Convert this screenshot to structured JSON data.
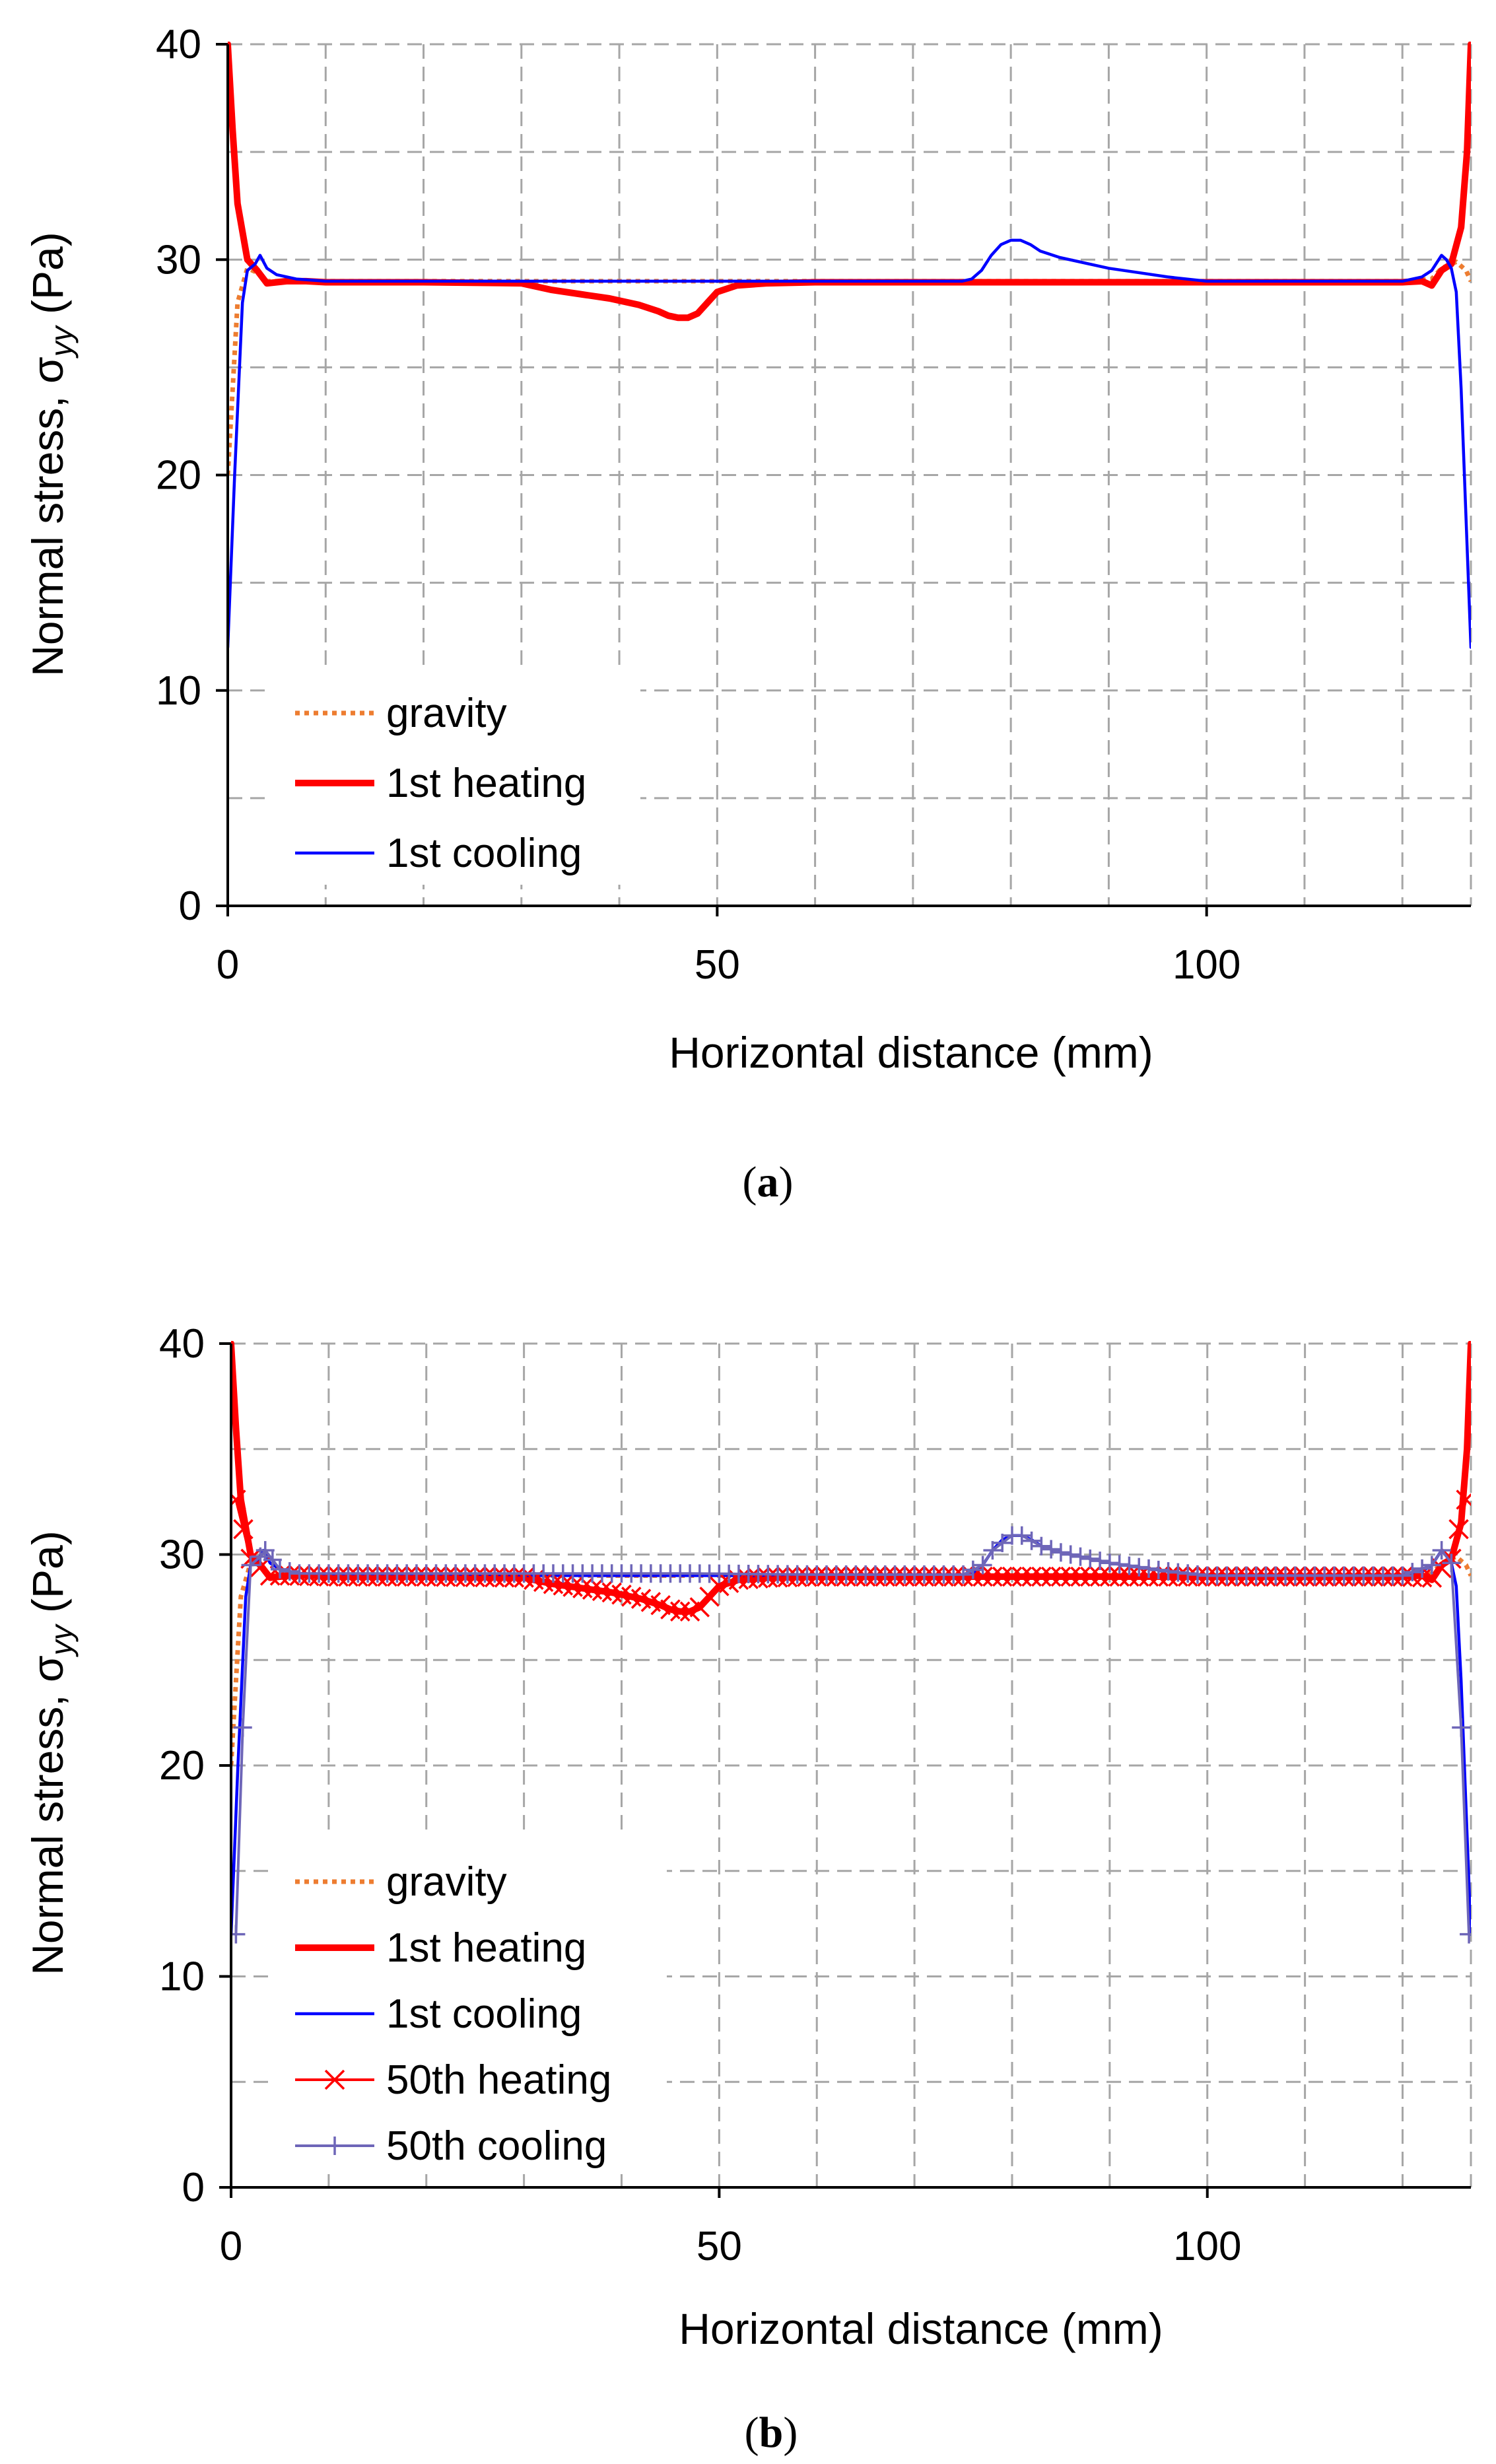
{
  "chart_data": [
    {
      "type": "line",
      "panel_label": "a",
      "xlabel": "Horizontal distance (mm)",
      "ylabel": "Normal stress, σ",
      "ylabel_sub": "yy",
      "ylabel_unit": " (Pa)",
      "xlim": [
        0,
        127
      ],
      "ylim": [
        0,
        40
      ],
      "xticks": [
        0,
        50,
        100
      ],
      "yticks": [
        0,
        10,
        20,
        30,
        40
      ],
      "x_minor_grid": [
        10,
        20,
        30,
        40,
        60,
        70,
        80,
        90,
        110,
        120
      ],
      "y_minor_grid": [
        5,
        15,
        25,
        35
      ],
      "series": [
        {
          "name": "gravity",
          "color": "#ED7D31",
          "style": "dotted",
          "points": [
            [
              0,
              20
            ],
            [
              1,
              28
            ],
            [
              2,
              29.6
            ],
            [
              3,
              29.4
            ],
            [
              4,
              29.0
            ],
            [
              10,
              29.0
            ],
            [
              60,
              29.0
            ],
            [
              120,
              29.0
            ],
            [
              123,
              29.1
            ],
            [
              124,
              29.6
            ],
            [
              125.5,
              29.9
            ],
            [
              126.5,
              29.5
            ],
            [
              127,
              29.0
            ]
          ]
        },
        {
          "name": "1st heating",
          "color": "#FF0000",
          "style": "thick",
          "points": [
            [
              0,
              40
            ],
            [
              0.5,
              36
            ],
            [
              1,
              32.6
            ],
            [
              2,
              30.0
            ],
            [
              3,
              29.5
            ],
            [
              4,
              28.9
            ],
            [
              6,
              29.0
            ],
            [
              8,
              29.0
            ],
            [
              10,
              28.95
            ],
            [
              20,
              28.95
            ],
            [
              30,
              28.9
            ],
            [
              33,
              28.6
            ],
            [
              36,
              28.4
            ],
            [
              39,
              28.2
            ],
            [
              42,
              27.9
            ],
            [
              44,
              27.6
            ],
            [
              45,
              27.4
            ],
            [
              46,
              27.3
            ],
            [
              47,
              27.3
            ],
            [
              48,
              27.5
            ],
            [
              49,
              28.0
            ],
            [
              50,
              28.5
            ],
            [
              52,
              28.8
            ],
            [
              55,
              28.9
            ],
            [
              60,
              28.95
            ],
            [
              80,
              28.95
            ],
            [
              100,
              28.95
            ],
            [
              120,
              28.95
            ],
            [
              122,
              29.0
            ],
            [
              123,
              28.8
            ],
            [
              124,
              29.5
            ],
            [
              125,
              29.8
            ],
            [
              126,
              31.5
            ],
            [
              126.6,
              35
            ],
            [
              127,
              40
            ]
          ]
        },
        {
          "name": "1st cooling",
          "color": "#0000FF",
          "style": "thin",
          "points": [
            [
              0,
              12
            ],
            [
              0.7,
              20
            ],
            [
              1.5,
              28
            ],
            [
              2,
              29.5
            ],
            [
              2.8,
              29.8
            ],
            [
              3.3,
              30.2
            ],
            [
              4,
              29.6
            ],
            [
              5,
              29.3
            ],
            [
              7,
              29.1
            ],
            [
              10,
              29.0
            ],
            [
              30,
              29.0
            ],
            [
              60,
              29.0
            ],
            [
              75,
              29.0
            ],
            [
              76,
              29.1
            ],
            [
              77,
              29.5
            ],
            [
              78,
              30.2
            ],
            [
              79,
              30.7
            ],
            [
              80,
              30.9
            ],
            [
              81,
              30.9
            ],
            [
              82,
              30.7
            ],
            [
              83,
              30.4
            ],
            [
              85,
              30.1
            ],
            [
              87,
              29.9
            ],
            [
              90,
              29.6
            ],
            [
              93,
              29.4
            ],
            [
              96,
              29.2
            ],
            [
              100,
              29.0
            ],
            [
              110,
              29.0
            ],
            [
              120,
              29.0
            ],
            [
              122,
              29.2
            ],
            [
              123,
              29.5
            ],
            [
              124,
              30.2
            ],
            [
              124.5,
              30.0
            ],
            [
              125,
              29.6
            ],
            [
              125.5,
              28.5
            ],
            [
              126,
              24
            ],
            [
              126.5,
              18
            ],
            [
              127,
              12
            ]
          ]
        }
      ],
      "legend": [
        "gravity",
        "1st heating",
        "1st cooling"
      ]
    },
    {
      "type": "line",
      "panel_label": "b",
      "xlabel": "Horizontal distance (mm)",
      "ylabel": "Normal stress, σ",
      "ylabel_sub": "yy",
      "ylabel_unit": " (Pa)",
      "xlim": [
        0,
        127
      ],
      "ylim": [
        0,
        40
      ],
      "xticks": [
        0,
        50,
        100
      ],
      "yticks": [
        0,
        10,
        20,
        30,
        40
      ],
      "x_minor_grid": [
        10,
        20,
        30,
        40,
        60,
        70,
        80,
        90,
        110,
        120
      ],
      "y_minor_grid": [
        5,
        15,
        25,
        35
      ],
      "series": [
        {
          "name": "gravity",
          "color": "#ED7D31",
          "style": "dotted",
          "points": [
            [
              0,
              20
            ],
            [
              1,
              28
            ],
            [
              2,
              29.6
            ],
            [
              3,
              29.4
            ],
            [
              4,
              29.0
            ],
            [
              10,
              29.0
            ],
            [
              60,
              29.0
            ],
            [
              120,
              29.0
            ],
            [
              123,
              29.1
            ],
            [
              124,
              29.6
            ],
            [
              125.5,
              29.9
            ],
            [
              126.5,
              29.5
            ],
            [
              127,
              29.0
            ]
          ]
        },
        {
          "name": "1st heating",
          "color": "#FF0000",
          "style": "thick",
          "points": [
            [
              0,
              40
            ],
            [
              0.5,
              36
            ],
            [
              1,
              32.6
            ],
            [
              2,
              30.0
            ],
            [
              3,
              29.5
            ],
            [
              4,
              28.9
            ],
            [
              6,
              29.0
            ],
            [
              8,
              29.0
            ],
            [
              10,
              28.95
            ],
            [
              20,
              28.95
            ],
            [
              30,
              28.9
            ],
            [
              33,
              28.6
            ],
            [
              36,
              28.4
            ],
            [
              39,
              28.2
            ],
            [
              42,
              27.9
            ],
            [
              44,
              27.6
            ],
            [
              45,
              27.4
            ],
            [
              46,
              27.3
            ],
            [
              47,
              27.3
            ],
            [
              48,
              27.5
            ],
            [
              49,
              28.0
            ],
            [
              50,
              28.5
            ],
            [
              52,
              28.8
            ],
            [
              55,
              28.9
            ],
            [
              60,
              28.95
            ],
            [
              80,
              28.95
            ],
            [
              100,
              28.95
            ],
            [
              120,
              28.95
            ],
            [
              122,
              29.0
            ],
            [
              123,
              28.8
            ],
            [
              124,
              29.5
            ],
            [
              125,
              29.8
            ],
            [
              126,
              31.5
            ],
            [
              126.6,
              35
            ],
            [
              127,
              40
            ]
          ]
        },
        {
          "name": "1st cooling",
          "color": "#0000FF",
          "style": "thin",
          "points": [
            [
              0,
              12
            ],
            [
              0.7,
              20
            ],
            [
              1.5,
              28
            ],
            [
              2,
              29.5
            ],
            [
              2.8,
              29.8
            ],
            [
              3.3,
              30.2
            ],
            [
              4,
              29.6
            ],
            [
              5,
              29.3
            ],
            [
              7,
              29.1
            ],
            [
              10,
              29.0
            ],
            [
              30,
              29.0
            ],
            [
              60,
              29.0
            ],
            [
              75,
              29.0
            ],
            [
              76,
              29.1
            ],
            [
              77,
              29.5
            ],
            [
              78,
              30.2
            ],
            [
              79,
              30.7
            ],
            [
              80,
              30.9
            ],
            [
              81,
              30.9
            ],
            [
              82,
              30.7
            ],
            [
              83,
              30.4
            ],
            [
              85,
              30.1
            ],
            [
              87,
              29.9
            ],
            [
              90,
              29.6
            ],
            [
              93,
              29.4
            ],
            [
              96,
              29.2
            ],
            [
              100,
              29.0
            ],
            [
              110,
              29.0
            ],
            [
              120,
              29.0
            ],
            [
              122,
              29.2
            ],
            [
              123,
              29.5
            ],
            [
              124,
              30.2
            ],
            [
              124.5,
              30.0
            ],
            [
              125,
              29.6
            ],
            [
              125.5,
              28.5
            ],
            [
              126,
              24
            ],
            [
              126.5,
              18
            ],
            [
              127,
              12
            ]
          ]
        },
        {
          "name": "50th heating",
          "color": "#FF0000",
          "style": "marker-x",
          "points": [
            [
              0.5,
              32.6
            ],
            [
              2,
              29.8
            ],
            [
              4,
              29.0
            ],
            [
              6,
              29.0
            ],
            [
              10,
              28.95
            ],
            [
              20,
              28.95
            ],
            [
              30,
              28.9
            ],
            [
              33,
              28.6
            ],
            [
              36,
              28.4
            ],
            [
              39,
              28.2
            ],
            [
              42,
              27.9
            ],
            [
              44,
              27.6
            ],
            [
              45,
              27.4
            ],
            [
              46,
              27.3
            ],
            [
              47,
              27.3
            ],
            [
              48,
              27.5
            ],
            [
              49,
              28.0
            ],
            [
              50,
              28.5
            ],
            [
              52,
              28.8
            ],
            [
              55,
              28.9
            ],
            [
              60,
              28.95
            ],
            [
              80,
              28.95
            ],
            [
              100,
              28.95
            ],
            [
              120,
              28.95
            ],
            [
              123,
              28.9
            ],
            [
              125,
              29.8
            ],
            [
              126.5,
              32.6
            ]
          ]
        },
        {
          "name": "50th cooling",
          "color": "#6E66B8",
          "style": "marker-plus",
          "points": [
            [
              0.5,
              12
            ],
            [
              1.2,
              21.8
            ],
            [
              2,
              29.5
            ],
            [
              3,
              29.9
            ],
            [
              3.5,
              30.2
            ],
            [
              5,
              29.3
            ],
            [
              7,
              29.1
            ],
            [
              10,
              29.1
            ],
            [
              30,
              29.1
            ],
            [
              47,
              29.1
            ],
            [
              60,
              29.05
            ],
            [
              75,
              29.05
            ],
            [
              77,
              29.5
            ],
            [
              78,
              30.2
            ],
            [
              80,
              30.9
            ],
            [
              81,
              30.9
            ],
            [
              83,
              30.4
            ],
            [
              85,
              30.1
            ],
            [
              87,
              29.9
            ],
            [
              90,
              29.6
            ],
            [
              93,
              29.4
            ],
            [
              96,
              29.2
            ],
            [
              100,
              29.0
            ],
            [
              120,
              29.0
            ],
            [
              123,
              29.5
            ],
            [
              124,
              30.2
            ],
            [
              125,
              29.6
            ],
            [
              126,
              21.8
            ],
            [
              126.8,
              12
            ]
          ]
        }
      ],
      "legend": [
        "gravity",
        "1st heating",
        "1st cooling",
        "50th heating",
        "50th cooling"
      ]
    }
  ]
}
